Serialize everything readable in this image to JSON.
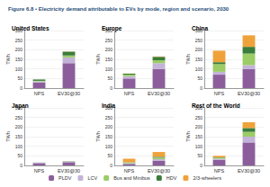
{
  "title": "Figure 6.8 • Electricity demand attributable to EVs by mode, region and scenario, 2030",
  "chart_data": [
    {
      "type": "bar",
      "title": "United States",
      "ylabel": "TWh",
      "categories": [
        "NPS",
        "EV30@30"
      ],
      "ylim": [
        0,
        300
      ],
      "yticks": [
        0,
        50,
        100,
        150,
        200,
        250,
        300
      ],
      "grid": true,
      "stacked": true,
      "legend": "bottom",
      "series": [
        {
          "name": "PLDV",
          "color": "#8b5e9b",
          "values": [
            30,
            130
          ]
        },
        {
          "name": "LCV",
          "color": "#c3b3d9",
          "values": [
            5,
            30
          ]
        },
        {
          "name": "Bus and Minibus",
          "color": "#9ccc65",
          "values": [
            3,
            10
          ]
        },
        {
          "name": "HDV",
          "color": "#3a7d3a",
          "values": [
            7,
            20
          ]
        },
        {
          "name": "2/3-wheelers",
          "color": "#f0a23a",
          "values": [
            0,
            1
          ]
        }
      ]
    },
    {
      "type": "bar",
      "title": "Europe",
      "ylabel": "TWh",
      "categories": [
        "NPS",
        "EV30@30"
      ],
      "ylim": [
        0,
        300
      ],
      "yticks": [
        0,
        50,
        100,
        150,
        200,
        250,
        300
      ],
      "grid": true,
      "stacked": true,
      "legend": "bottom",
      "series": [
        {
          "name": "PLDV",
          "color": "#8b5e9b",
          "values": [
            50,
            100
          ]
        },
        {
          "name": "LCV",
          "color": "#c3b3d9",
          "values": [
            12,
            30
          ]
        },
        {
          "name": "Bus and Minibus",
          "color": "#9ccc65",
          "values": [
            8,
            15
          ]
        },
        {
          "name": "HDV",
          "color": "#3a7d3a",
          "values": [
            5,
            18
          ]
        },
        {
          "name": "2/3-wheelers",
          "color": "#f0a23a",
          "values": [
            1,
            2
          ]
        }
      ]
    },
    {
      "type": "bar",
      "title": "China",
      "ylabel": "TWh",
      "categories": [
        "NPS",
        "EV30@30"
      ],
      "ylim": [
        0,
        300
      ],
      "yticks": [
        0,
        50,
        100,
        150,
        200,
        250,
        300
      ],
      "grid": true,
      "stacked": true,
      "legend": "bottom",
      "series": [
        {
          "name": "PLDV",
          "color": "#8b5e9b",
          "values": [
            70,
            100
          ]
        },
        {
          "name": "LCV",
          "color": "#c3b3d9",
          "values": [
            15,
            20
          ]
        },
        {
          "name": "Bus and Minibus",
          "color": "#9ccc65",
          "values": [
            40,
            60
          ]
        },
        {
          "name": "HDV",
          "color": "#3a7d3a",
          "values": [
            10,
            35
          ]
        },
        {
          "name": "2/3-wheelers",
          "color": "#f0a23a",
          "values": [
            60,
            60
          ]
        }
      ]
    },
    {
      "type": "bar",
      "title": "Japan",
      "ylabel": "TWh",
      "categories": [
        "NPS",
        "EV30@30"
      ],
      "ylim": [
        0,
        300
      ],
      "yticks": [
        0,
        50,
        100,
        150,
        200,
        250,
        300
      ],
      "grid": true,
      "stacked": true,
      "legend": "bottom",
      "series": [
        {
          "name": "PLDV",
          "color": "#8b5e9b",
          "values": [
            12,
            17
          ]
        },
        {
          "name": "LCV",
          "color": "#c3b3d9",
          "values": [
            2,
            3
          ]
        },
        {
          "name": "Bus and Minibus",
          "color": "#9ccc65",
          "values": [
            0.5,
            1
          ]
        },
        {
          "name": "HDV",
          "color": "#3a7d3a",
          "values": [
            0.5,
            1
          ]
        },
        {
          "name": "2/3-wheelers",
          "color": "#f0a23a",
          "values": [
            0,
            0
          ]
        }
      ]
    },
    {
      "type": "bar",
      "title": "India",
      "ylabel": "TWh",
      "categories": [
        "NPS",
        "EV30@30"
      ],
      "ylim": [
        0,
        300
      ],
      "yticks": [
        0,
        50,
        100,
        150,
        200,
        250,
        300
      ],
      "grid": true,
      "stacked": true,
      "legend": "bottom",
      "series": [
        {
          "name": "PLDV",
          "color": "#8b5e9b",
          "values": [
            8,
            25
          ]
        },
        {
          "name": "LCV",
          "color": "#c3b3d9",
          "values": [
            3,
            8
          ]
        },
        {
          "name": "Bus and Minibus",
          "color": "#9ccc65",
          "values": [
            5,
            8
          ]
        },
        {
          "name": "HDV",
          "color": "#3a7d3a",
          "values": [
            1,
            4
          ]
        },
        {
          "name": "2/3-wheelers",
          "color": "#f0a23a",
          "values": [
            18,
            25
          ]
        }
      ]
    },
    {
      "type": "bar",
      "title": "Rest of the World",
      "ylabel": "TWh",
      "categories": [
        "NPS",
        "EV30@30"
      ],
      "ylim": [
        0,
        300
      ],
      "yticks": [
        0,
        50,
        100,
        150,
        200,
        250,
        300
      ],
      "grid": true,
      "stacked": true,
      "legend": "bottom",
      "series": [
        {
          "name": "PLDV",
          "color": "#8b5e9b",
          "values": [
            30,
            120
          ]
        },
        {
          "name": "LCV",
          "color": "#c3b3d9",
          "values": [
            5,
            30
          ]
        },
        {
          "name": "Bus and Minibus",
          "color": "#9ccc65",
          "values": [
            5,
            25
          ]
        },
        {
          "name": "HDV",
          "color": "#3a7d3a",
          "values": [
            2,
            20
          ]
        },
        {
          "name": "2/3-wheelers",
          "color": "#f0a23a",
          "values": [
            8,
            30
          ]
        }
      ]
    }
  ]
}
